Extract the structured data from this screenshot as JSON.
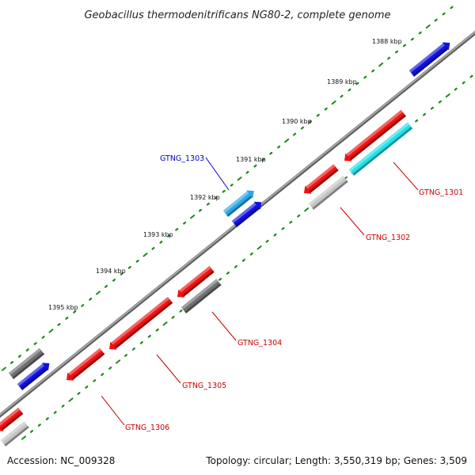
{
  "header": {
    "title": "Geobacillus thermodenitrificans NG80-2, complete genome"
  },
  "footer": {
    "accession": "Accession: NC_009328",
    "summary": "Topology: circular; Length: 3,550,319 bp; Genes: 3,509"
  },
  "scale": {
    "ticks": [
      {
        "label": "1388 kbp"
      },
      {
        "label": "1389 kbp"
      },
      {
        "label": "1390 kbp"
      },
      {
        "label": "1391 kbp"
      },
      {
        "label": "1392 kbp"
      },
      {
        "label": "1393 kbp"
      },
      {
        "label": "1394 kbp"
      },
      {
        "label": "1395 kbp"
      }
    ]
  },
  "colors": {
    "backbone": "#8a8a8a",
    "tick_dot": "#1a8a1a",
    "forward_cds": "#1010e0",
    "forward_light": "#2aa8e8",
    "reverse_cds": "#ee1111",
    "reverse_cyan": "#22e0e8",
    "reverse_gray": "#707070",
    "reverse_light_gray": "#c4c4c4",
    "label_red": "#cc0000",
    "label_blue": "#0000cc"
  },
  "gene_labels": {
    "gtng_1301": "GTNG_1301",
    "gtng_1302": "GTNG_1302",
    "gtng_1303": "GTNG_1303",
    "gtng_1304": "GTNG_1304",
    "gtng_1305": "GTNG_1305",
    "gtng_1306": "GTNG_1306"
  }
}
